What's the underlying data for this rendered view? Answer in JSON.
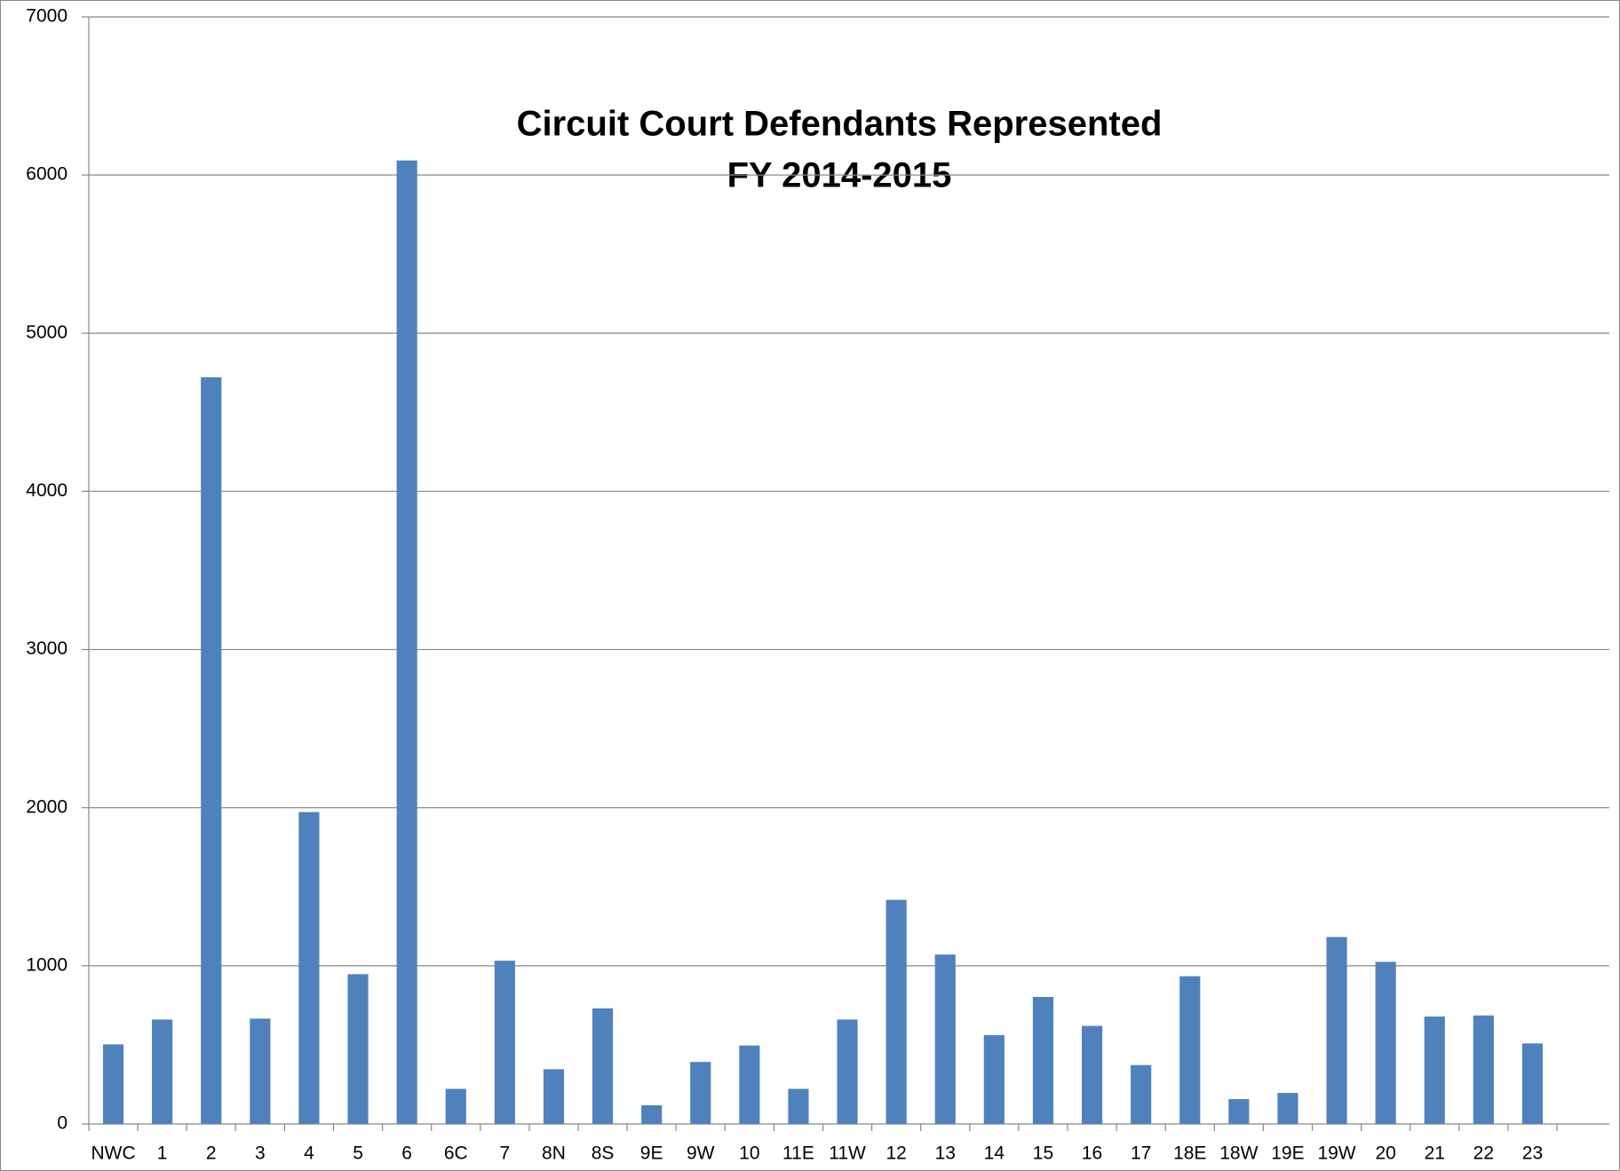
{
  "chart_data": {
    "type": "bar",
    "title": "Circuit Court Defendants Represented",
    "subtitle": "FY 2014-2015",
    "categories": [
      "NWC",
      "1",
      "2",
      "3",
      "4",
      "5",
      "6",
      "6C",
      "7",
      "8N",
      "8S",
      "9E",
      "9W",
      "10",
      "11E",
      "11W",
      "12",
      "13",
      "14",
      "15",
      "16",
      "17",
      "18E",
      "18W",
      "19E",
      "19W",
      "20",
      "21",
      "22",
      "23"
    ],
    "values": [
      503,
      660,
      4721,
      666,
      1972,
      947,
      6092,
      222,
      1032,
      346,
      731,
      118,
      392,
      496,
      222,
      660,
      1417,
      1071,
      562,
      803,
      620,
      372,
      934,
      157,
      196,
      1182,
      1025,
      679,
      686,
      509
    ],
    "color": "#4f81bd",
    "ylim": [
      0,
      7000
    ],
    "yticks": [
      0,
      1000,
      2000,
      3000,
      4000,
      5000,
      6000,
      7000
    ],
    "grid": true
  }
}
